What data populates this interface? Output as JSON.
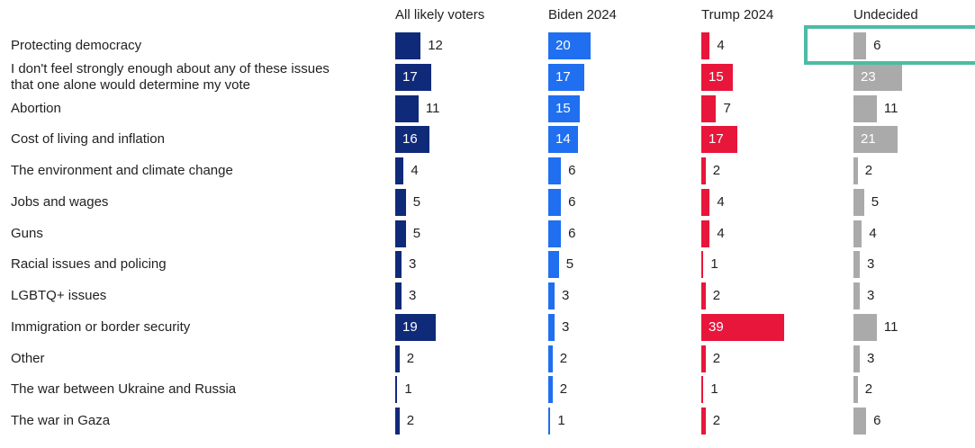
{
  "chart_data": {
    "type": "bar",
    "orientation": "horizontal",
    "small_multiples": true,
    "title": "",
    "xlabel": "",
    "ylabel": "",
    "categories": [
      "Protecting democracy",
      "I don't feel strongly enough about any of these issues that one alone would determine my vote",
      "Abortion",
      "Cost of living and inflation",
      "The environment and climate change",
      "Jobs and wages",
      "Guns",
      "Racial issues and policing",
      "LGBTQ+ issues",
      "Immigration or border security",
      "Other",
      "The war between Ukraine and Russia",
      "The war in Gaza"
    ],
    "category_lines": [
      [
        "Protecting democracy"
      ],
      [
        "I don't feel strongly enough about any of these issues",
        "that one alone would determine my vote"
      ],
      [
        "Abortion"
      ],
      [
        "Cost of living and inflation"
      ],
      [
        "The environment and climate change"
      ],
      [
        "Jobs and wages"
      ],
      [
        "Guns"
      ],
      [
        "Racial issues and policing"
      ],
      [
        "LGBTQ+ issues"
      ],
      [
        "Immigration or border security"
      ],
      [
        "Other"
      ],
      [
        "The war between Ukraine and Russia"
      ],
      [
        "The war in Gaza"
      ]
    ],
    "series": [
      {
        "name": "All likely voters",
        "color": "#102a7a",
        "values": [
          12,
          17,
          11,
          16,
          4,
          5,
          5,
          3,
          3,
          19,
          2,
          1,
          2
        ]
      },
      {
        "name": "Biden 2024",
        "color": "#1f6ff0",
        "values": [
          20,
          17,
          15,
          14,
          6,
          6,
          6,
          5,
          3,
          3,
          2,
          2,
          1
        ]
      },
      {
        "name": "Trump 2024",
        "color": "#e8163a",
        "values": [
          4,
          15,
          7,
          17,
          2,
          4,
          4,
          1,
          2,
          39,
          2,
          1,
          2
        ]
      },
      {
        "name": "Undecided",
        "color": "#aaaaaa",
        "values": [
          6,
          23,
          11,
          21,
          2,
          5,
          4,
          3,
          3,
          11,
          3,
          2,
          6
        ]
      }
    ],
    "xlim": [
      0,
      40
    ],
    "grid": false,
    "legend": "none",
    "highlight": {
      "series": "Undecided",
      "category": "Protecting democracy",
      "color": "#4dbba5"
    }
  }
}
